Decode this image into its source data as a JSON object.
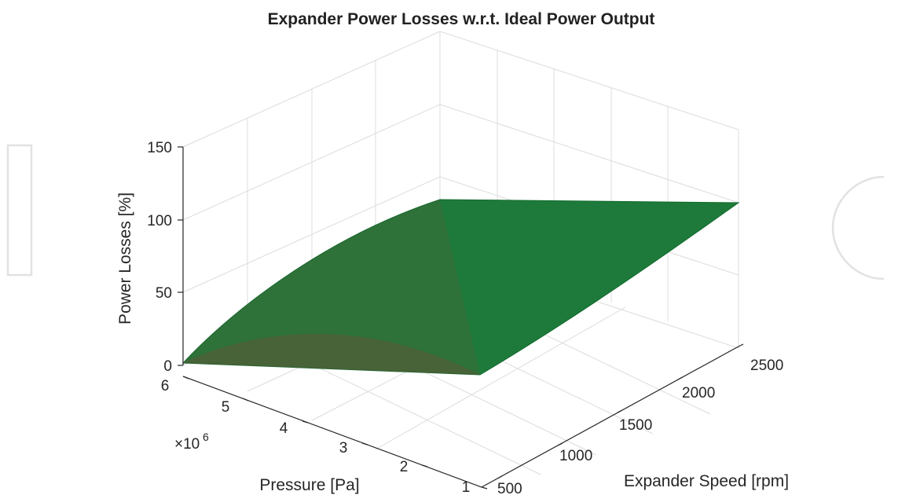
{
  "chart_data": {
    "type": "surface",
    "title": "Expander Power Losses w.r.t. Ideal Power Output",
    "xlabel": "Expander Speed [rpm]",
    "ylabel": "Pressure [Pa]",
    "zlabel": "Power Losses [%]",
    "y_exponent_base": "×10",
    "y_exponent_power": "6",
    "xlim": [
      500,
      2600
    ],
    "ylim": [
      1,
      6
    ],
    "zlim": [
      0,
      150
    ],
    "x_ticks": [
      "500",
      "1000",
      "1500",
      "2000",
      "2500"
    ],
    "y_ticks": [
      "1",
      "2",
      "3",
      "4",
      "5",
      "6"
    ],
    "z_ticks": [
      "0",
      "50",
      "100",
      "150"
    ],
    "grid": true,
    "surface_color": "#1e7a3a",
    "surface_edge_color": "#7a4a3a",
    "surface_corners": [
      {
        "x": 500,
        "y": 1,
        "z": 0
      },
      {
        "x": 2600,
        "y": 1,
        "z": 112
      },
      {
        "x": 500,
        "y": 6,
        "z": 0
      },
      {
        "x": 2600,
        "y": 6,
        "z": 112
      }
    ]
  }
}
